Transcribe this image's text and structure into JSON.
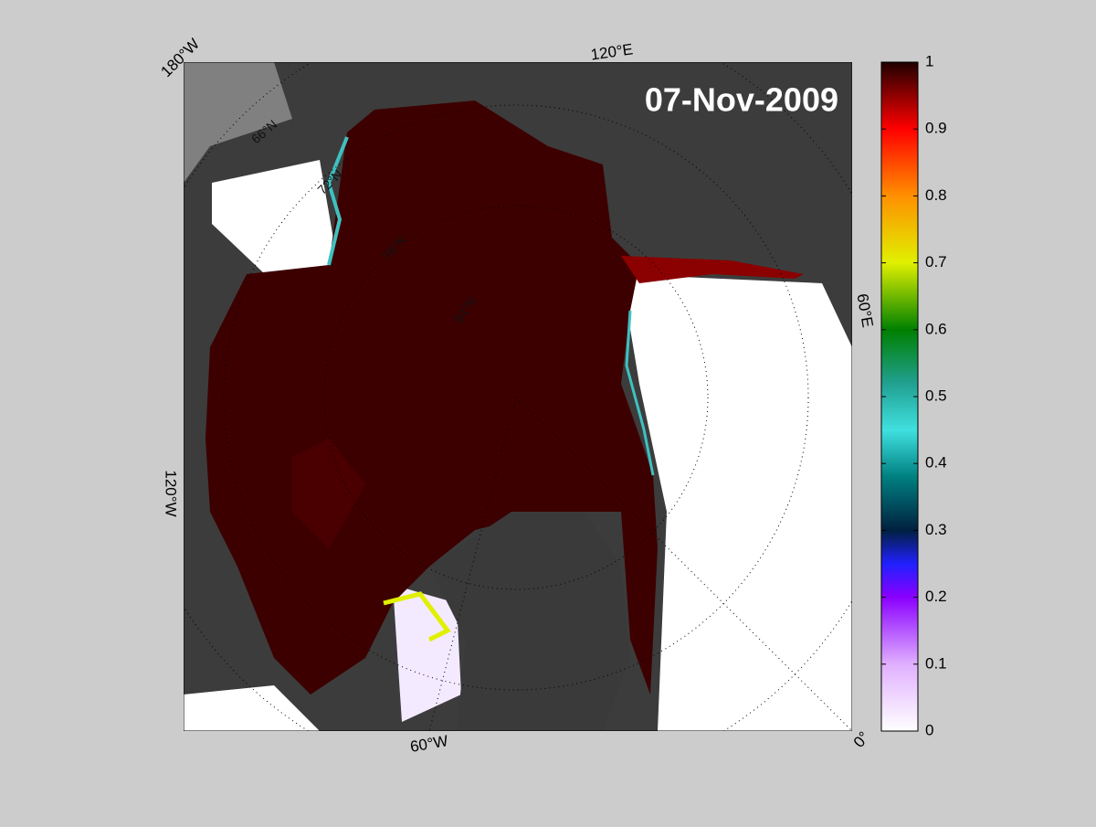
{
  "map": {
    "date": "07-Nov-2009",
    "longitude_labels": [
      "180°W",
      "120°E",
      "60°E",
      "0°",
      "120°W",
      "60°W"
    ],
    "latitude_labels": [
      "66°N",
      "72°N",
      "78°N",
      "84°N"
    ]
  },
  "colorbar": {
    "lim": [
      0,
      1
    ],
    "ticks": [
      0,
      0.1,
      0.2,
      0.3,
      0.4,
      0.5,
      0.6,
      0.7,
      0.8,
      0.9,
      1
    ]
  }
}
